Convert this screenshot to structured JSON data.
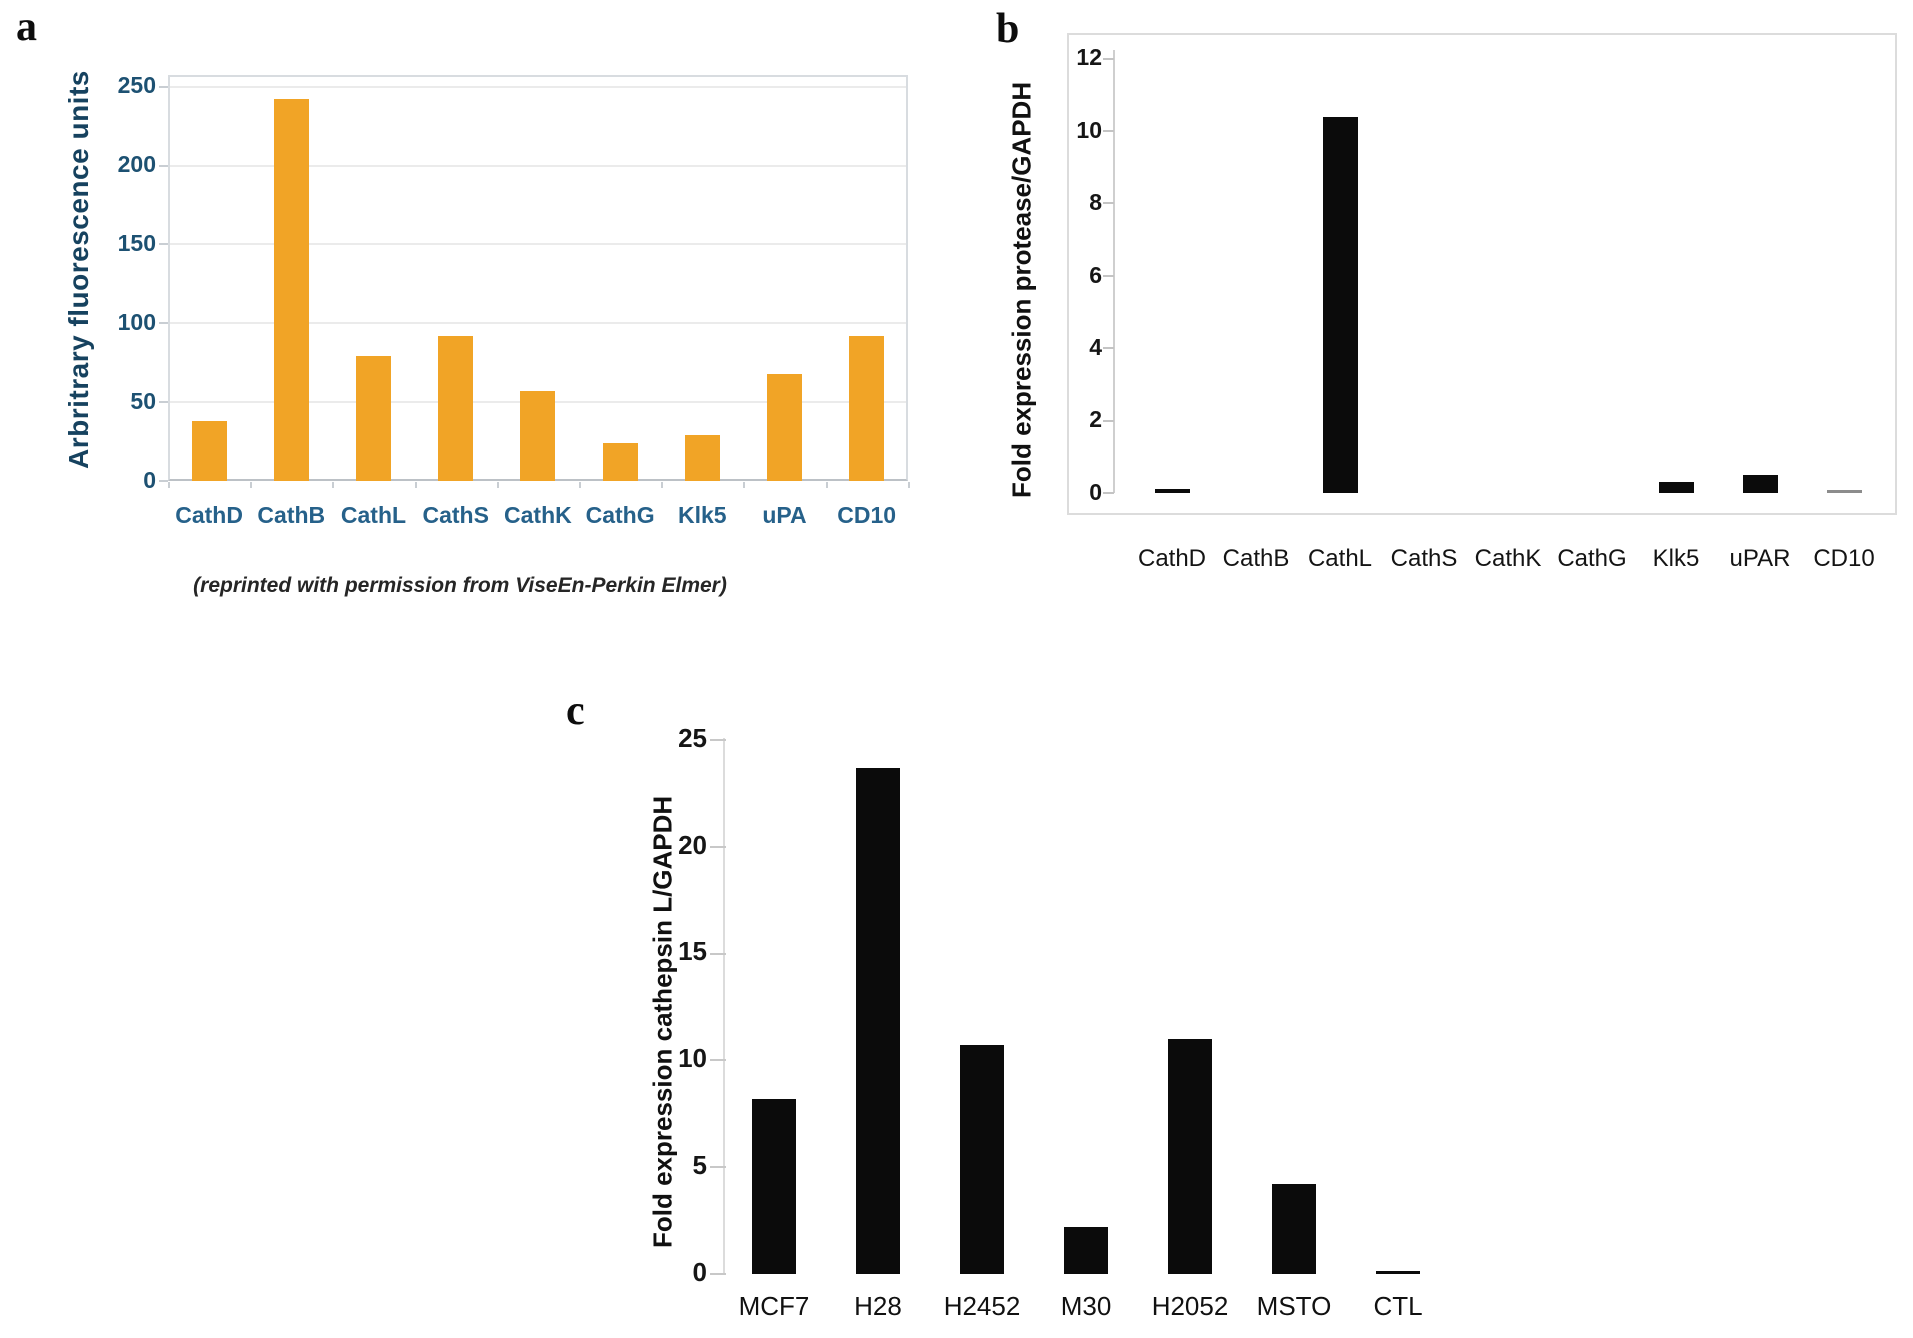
{
  "chart_data": [
    {
      "panel_letter": "a",
      "type": "bar",
      "categories": [
        "CathD",
        "CathB",
        "CathL",
        "CathS",
        "CathK",
        "CathG",
        "Klk5",
        "uPA",
        "CD10"
      ],
      "values": [
        38,
        242,
        79,
        92,
        57,
        24,
        29,
        68,
        92
      ],
      "title": "",
      "xlabel": "",
      "ylabel": "Arbritrary fluorescence units",
      "yticks": [
        0,
        50,
        100,
        150,
        200,
        250
      ],
      "ylim": [
        0,
        257
      ],
      "grid": true,
      "legend": null,
      "bar_color": "#f1a426",
      "axis_text_color": "#1d5172",
      "caption": "(reprinted with permission from ViseEn-Perkin Elmer)"
    },
    {
      "panel_letter": "b",
      "type": "bar",
      "categories": [
        "CathD",
        "CathB",
        "CathL",
        "CathS",
        "CathK",
        "CathG",
        "Klk5",
        "uPAR",
        "CD10"
      ],
      "values": [
        0.1,
        0,
        10.4,
        0,
        0,
        0,
        0.3,
        0.5,
        0.05
      ],
      "title": "",
      "xlabel": "",
      "ylabel": "Fold expression protease/GAPDH",
      "yticks": [
        0,
        2,
        4,
        6,
        8,
        10,
        12
      ],
      "ylim": [
        0,
        12.7
      ],
      "grid": false,
      "legend": null,
      "bar_color": "#0b0b0b",
      "bar_color_overrides": {
        "CD10": "#8c8c8c"
      }
    },
    {
      "panel_letter": "c",
      "type": "bar",
      "categories": [
        "MCF7",
        "H28",
        "H2452",
        "M30",
        "H2052",
        "MSTO",
        "CTL"
      ],
      "values": [
        8.2,
        23.7,
        10.7,
        2.2,
        11.0,
        4.2,
        0.1
      ],
      "title": "",
      "xlabel": "",
      "ylabel": "Fold expression cathepsin L/GAPDH",
      "yticks": [
        0,
        5,
        10,
        15,
        20,
        25
      ],
      "ylim": [
        0,
        25.2
      ],
      "grid": false,
      "legend": null,
      "bar_color": "#0b0b0b",
      "bar_color_overrides": {}
    }
  ]
}
